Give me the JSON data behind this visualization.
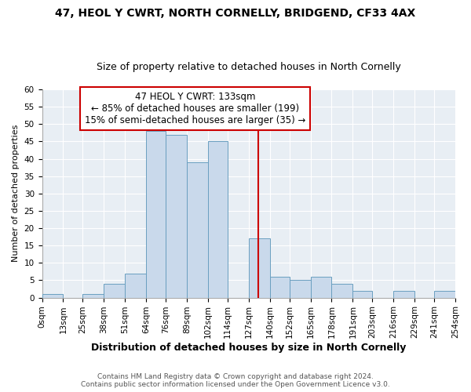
{
  "title": "47, HEOL Y CWRT, NORTH CORNELLY, BRIDGEND, CF33 4AX",
  "subtitle": "Size of property relative to detached houses in North Cornelly",
  "xlabel": "Distribution of detached houses by size in North Cornelly",
  "ylabel": "Number of detached properties",
  "bin_edges": [
    0,
    13,
    25,
    38,
    51,
    64,
    76,
    89,
    102,
    114,
    127,
    140,
    152,
    165,
    178,
    191,
    203,
    216,
    229,
    241,
    254
  ],
  "counts": [
    1,
    0,
    1,
    4,
    7,
    48,
    47,
    39,
    45,
    0,
    17,
    6,
    5,
    6,
    4,
    2,
    0,
    2,
    0,
    2
  ],
  "bar_color": "#c9d9eb",
  "bar_edge_color": "#6a9fc0",
  "plot_bg_color": "#e8eef4",
  "vline_x": 133,
  "vline_color": "#cc0000",
  "annotation_title": "47 HEOL Y CWRT: 133sqm",
  "annotation_line1": "← 85% of detached houses are smaller (199)",
  "annotation_line2": "15% of semi-detached houses are larger (35) →",
  "annotation_box_color": "#cc0000",
  "tick_labels": [
    "0sqm",
    "13sqm",
    "25sqm",
    "38sqm",
    "51sqm",
    "64sqm",
    "76sqm",
    "89sqm",
    "102sqm",
    "114sqm",
    "127sqm",
    "140sqm",
    "152sqm",
    "165sqm",
    "178sqm",
    "191sqm",
    "203sqm",
    "216sqm",
    "229sqm",
    "241sqm",
    "254sqm"
  ],
  "ylim": [
    0,
    60
  ],
  "yticks": [
    0,
    5,
    10,
    15,
    20,
    25,
    30,
    35,
    40,
    45,
    50,
    55,
    60
  ],
  "footnote1": "Contains HM Land Registry data © Crown copyright and database right 2024.",
  "footnote2": "Contains public sector information licensed under the Open Government Licence v3.0.",
  "title_fontsize": 10,
  "subtitle_fontsize": 9,
  "xlabel_fontsize": 9,
  "ylabel_fontsize": 8,
  "tick_fontsize": 7.5,
  "annotation_fontsize": 8.5,
  "footnote_fontsize": 6.5
}
